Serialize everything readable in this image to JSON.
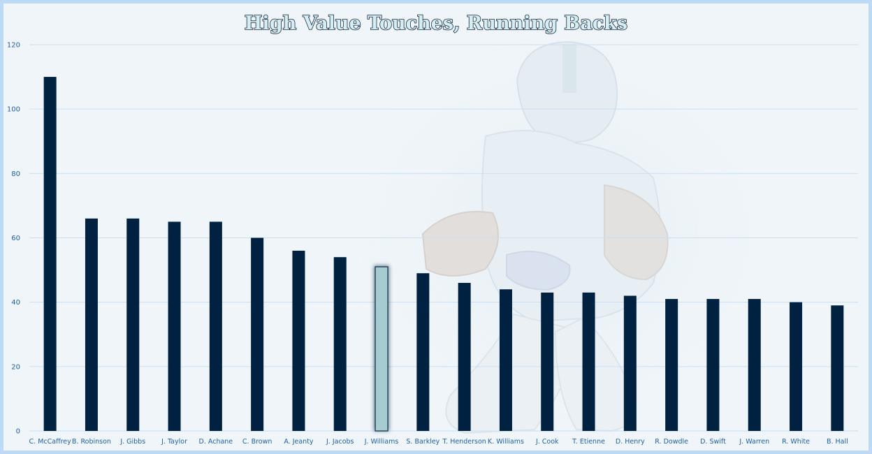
{
  "chart_data": {
    "type": "bar",
    "title": "High Value Touches, Running Backs",
    "xlabel": "",
    "ylabel": "",
    "ylim": [
      0,
      120
    ],
    "yticks": [
      0,
      20,
      40,
      60,
      80,
      100,
      120
    ],
    "grid": true,
    "legend": "none",
    "categories": [
      "C. McCaffrey",
      "B. Robinson",
      "J. Gibbs",
      "J. Taylor",
      "D. Achane",
      "C. Brown",
      "A. Jeanty",
      "J. Jacobs",
      "J. Williams",
      "S. Barkley",
      "T. Henderson",
      "K. Williams",
      "J. Cook",
      "T. Etienne",
      "D. Henry",
      "R. Dowdle",
      "D. Swift",
      "J. Warren",
      "R. White",
      "B. Hall"
    ],
    "values": [
      110,
      66,
      66,
      65,
      65,
      60,
      56,
      54,
      51,
      49,
      46,
      44,
      43,
      43,
      42,
      41,
      41,
      41,
      40,
      39
    ],
    "highlighted_category": "J. Williams",
    "colors": {
      "bar": "#00213f",
      "highlight_bar": "#a7ccd0",
      "highlight_outline": "#0b2c47",
      "gridline": "#c9e0f3",
      "label": "#1f5fa4",
      "background": "#eff5f9",
      "border": "#bcd9f6"
    }
  }
}
